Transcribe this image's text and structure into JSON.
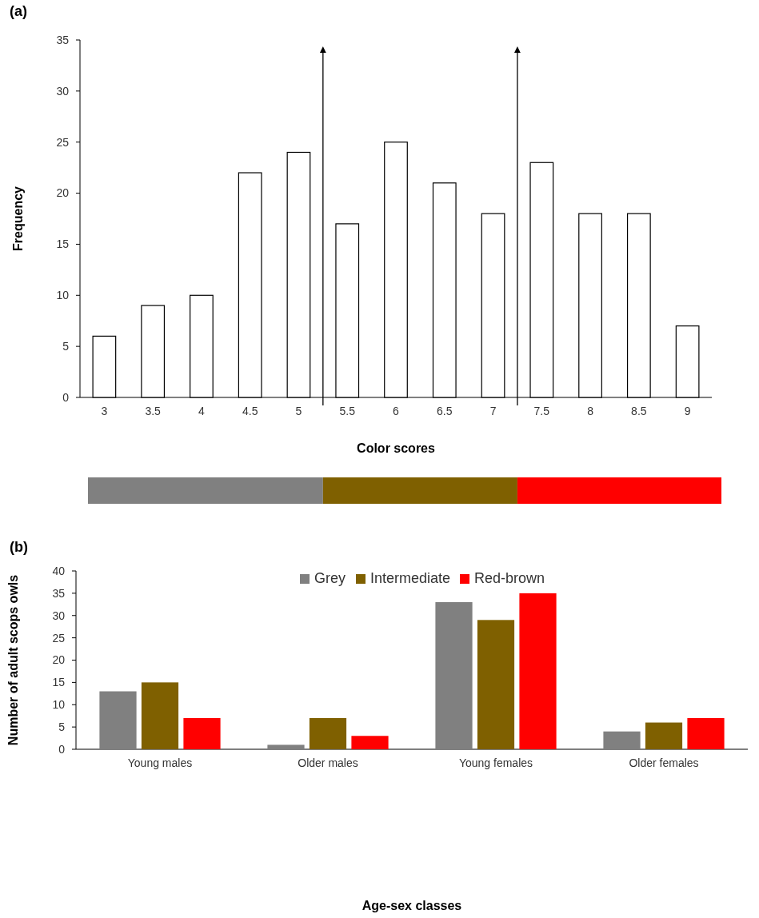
{
  "chart_data": [
    {
      "type": "bar",
      "title": "(a)",
      "xlabel": "Color scores",
      "ylabel": "Frequency",
      "x": [
        3,
        3.5,
        4,
        4.5,
        5,
        5.5,
        6,
        6.5,
        7,
        7.5,
        8,
        8.5,
        9
      ],
      "values": [
        6,
        9,
        10,
        22,
        24,
        17,
        25,
        21,
        18,
        23,
        18,
        18,
        7
      ],
      "color": "#ffffff",
      "xlim": [
        2.75,
        9.25
      ],
      "xticks": [
        3,
        3.5,
        4,
        4.5,
        5,
        5.5,
        6,
        6.5,
        7,
        7.5,
        8,
        8.5,
        9
      ],
      "ylim": [
        0,
        35
      ],
      "yticks": [
        0,
        5,
        10,
        15,
        20,
        25,
        30,
        35
      ],
      "ref_lines": [
        {
          "axis": "x",
          "value": 5.25
        },
        {
          "axis": "x",
          "value": 7.25
        }
      ],
      "grid": false,
      "legend": false
    },
    {
      "type": "bar",
      "title": "(b)",
      "xlabel": "Age-sex classes",
      "ylabel": "Number of adult scops owls",
      "categories": [
        "Young males",
        "Older males",
        "Young females",
        "Older females"
      ],
      "series": [
        {
          "name": "Grey",
          "color": "#808080",
          "values": [
            13,
            1,
            33,
            4
          ]
        },
        {
          "name": "Intermediate",
          "color": "#7f6000",
          "values": [
            15,
            7,
            29,
            6
          ]
        },
        {
          "name": "Red-brown",
          "color": "#ff0000",
          "values": [
            7,
            3,
            35,
            7
          ]
        }
      ],
      "ylim": [
        0,
        40
      ],
      "yticks": [
        0,
        5,
        10,
        15,
        20,
        25,
        30,
        35,
        40
      ],
      "grid": false,
      "legend": "top"
    }
  ]
}
